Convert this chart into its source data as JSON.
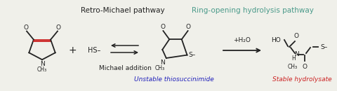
{
  "bg_color": "#f0f0ea",
  "title1": "Retro-Michael pathway",
  "title2": "Ring-opening hydrolysis pathway",
  "title1_color": "#222222",
  "title2_color": "#4a9a8a",
  "label1": "Michael addition",
  "label2": "Unstable thiosuccinimide",
  "label3": "Stable hydrolysate",
  "label1_color": "#222222",
  "label2_color": "#2222bb",
  "label3_color": "#cc2222",
  "water_text": "+H₂O",
  "figsize": [
    4.8,
    1.3
  ],
  "dpi": 100
}
